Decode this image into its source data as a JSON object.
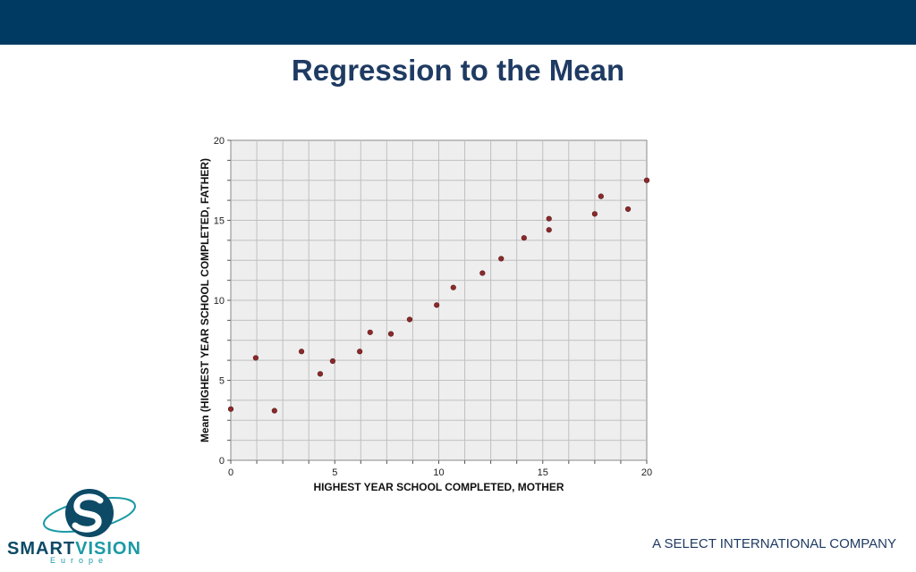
{
  "colors": {
    "band": "#003a63",
    "title": "#1f3b63",
    "plot_bg": "#eeeeee",
    "grid": "#c0c0c0",
    "point": "#8b2a2a",
    "logo_teal": "#1b9aa5",
    "logo_dark": "#0d4a66",
    "footer_text": "#1f3b63"
  },
  "slide": {
    "title": "Regression to the Mean",
    "footer": "A SELECT INTERNATIONAL COMPANY"
  },
  "logo": {
    "word_part1": "SMART",
    "word_part2": "VISION",
    "sub": "Europe"
  },
  "chart_data": {
    "type": "scatter",
    "title": "",
    "xlabel": "HIGHEST YEAR SCHOOL COMPLETED, MOTHER",
    "ylabel": "Mean (HIGHEST YEAR SCHOOL COMPLETED, FATHER)",
    "xlim": [
      0,
      20
    ],
    "ylim": [
      0,
      20
    ],
    "xticks": [
      0,
      5,
      10,
      15,
      20
    ],
    "yticks": [
      0,
      5,
      10,
      15,
      20
    ],
    "grid": true,
    "points": [
      {
        "x": 0,
        "y": 3.2
      },
      {
        "x": 1.2,
        "y": 6.4
      },
      {
        "x": 2.1,
        "y": 3.1
      },
      {
        "x": 3.4,
        "y": 6.8
      },
      {
        "x": 4.3,
        "y": 5.4
      },
      {
        "x": 4.9,
        "y": 6.2
      },
      {
        "x": 6.2,
        "y": 6.8
      },
      {
        "x": 6.7,
        "y": 8.0
      },
      {
        "x": 7.7,
        "y": 7.9
      },
      {
        "x": 8.6,
        "y": 8.8
      },
      {
        "x": 9.9,
        "y": 9.7
      },
      {
        "x": 10.7,
        "y": 10.8
      },
      {
        "x": 12.1,
        "y": 11.7
      },
      {
        "x": 13.0,
        "y": 12.6
      },
      {
        "x": 14.1,
        "y": 13.9
      },
      {
        "x": 15.3,
        "y": 15.1
      },
      {
        "x": 15.3,
        "y": 14.4
      },
      {
        "x": 17.5,
        "y": 15.4
      },
      {
        "x": 17.8,
        "y": 16.5
      },
      {
        "x": 19.1,
        "y": 15.7
      },
      {
        "x": 20.0,
        "y": 17.5
      }
    ]
  }
}
